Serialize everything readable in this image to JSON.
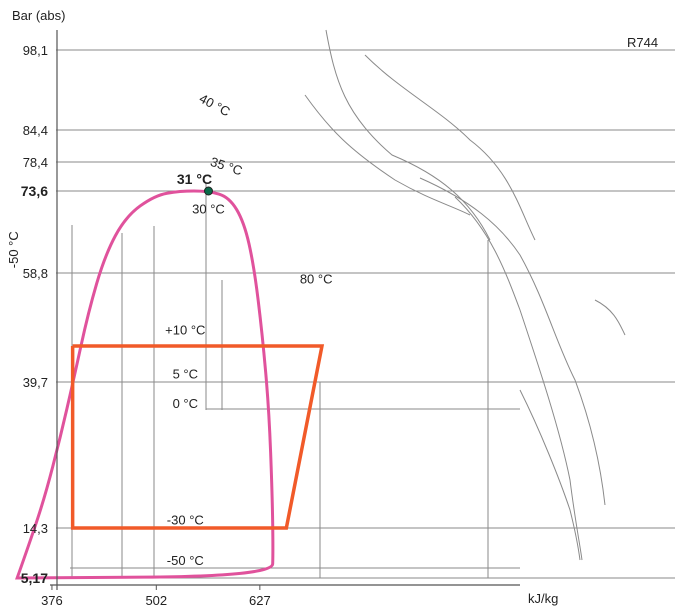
{
  "chart_data": {
    "type": "line",
    "title": "",
    "corner_label": "R744",
    "ylabel": "Bar (abs)",
    "xlabel": "kJ/kg",
    "y_ticks": [
      {
        "label": "98,1",
        "value": 98.1,
        "bold": false
      },
      {
        "label": "84,4",
        "value": 84.4,
        "bold": false
      },
      {
        "label": "78,4",
        "value": 78.4,
        "bold": false
      },
      {
        "label": "73,6",
        "value": 73.6,
        "bold": true
      },
      {
        "label": "58,8",
        "value": 58.8,
        "bold": false
      },
      {
        "label": "39,7",
        "value": 39.7,
        "bold": false
      },
      {
        "label": "14,3",
        "value": 14.3,
        "bold": false
      },
      {
        "label": "5,17",
        "value": 5.17,
        "bold": true
      }
    ],
    "x_ticks": [
      {
        "label": "376",
        "value": 376
      },
      {
        "label": "502",
        "value": 502
      },
      {
        "label": "627",
        "value": 627
      }
    ],
    "critical_point": {
      "label": "31 °C",
      "h": 565,
      "p": 73.6
    },
    "saturation_dome": {
      "name": "saturation curve",
      "color": "#e0529c",
      "points": [
        [
          334,
          5.17
        ],
        [
          350,
          12
        ],
        [
          368,
          20
        ],
        [
          386,
          30
        ],
        [
          402,
          40
        ],
        [
          420,
          52
        ],
        [
          440,
          62
        ],
        [
          465,
          69
        ],
        [
          500,
          72.8
        ],
        [
          530,
          73.6
        ],
        [
          565,
          73.6
        ],
        [
          590,
          72.5
        ],
        [
          608,
          68
        ],
        [
          620,
          60
        ],
        [
          630,
          48
        ],
        [
          638,
          35
        ],
        [
          642,
          20
        ],
        [
          643,
          10
        ],
        [
          642,
          5.5
        ],
        [
          334,
          5.17
        ]
      ]
    },
    "cycle": {
      "name": "refrigeration cycle",
      "color": "#f15a29",
      "points": [
        [
          401,
          46
        ],
        [
          702,
          46
        ],
        [
          659,
          14.3
        ],
        [
          401,
          14.3
        ],
        [
          401,
          46
        ]
      ]
    },
    "isotherm_labels": [
      {
        "label": "40 °C",
        "h": 570,
        "p": 88
      },
      {
        "label": "35 °C",
        "h": 585,
        "p": 77
      },
      {
        "label": "30 °C",
        "h": 565,
        "p": 69.5
      },
      {
        "label": "80 °C",
        "h": 695,
        "p": 57
      },
      {
        "label": "+10 °C",
        "h": 537,
        "p": 48
      },
      {
        "label": "5 °C",
        "h": 537,
        "p": 40.3
      },
      {
        "label": "0 °C",
        "h": 537,
        "p": 35.2
      },
      {
        "label": "-30 °C",
        "h": 537,
        "p": 14.9
      },
      {
        "label": "-50 °C",
        "h": 537,
        "p": 7.5
      },
      {
        "label": "-50 °C",
        "h": 335,
        "p": 63,
        "rotated": true
      }
    ],
    "grid": true,
    "legend": "none"
  }
}
